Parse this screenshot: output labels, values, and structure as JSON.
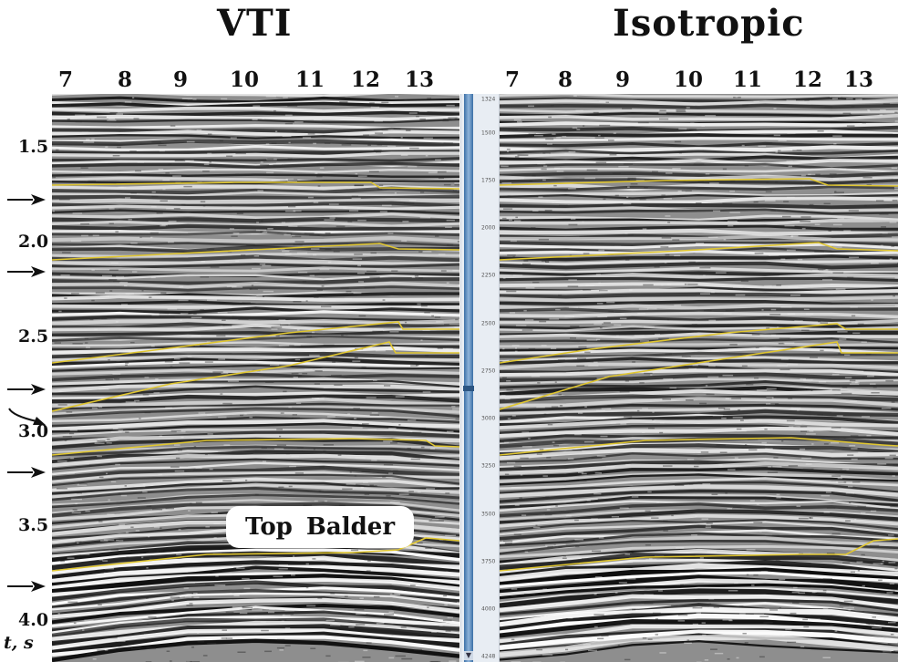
{
  "figure": {
    "left_title": "VTI",
    "right_title": "Isotropic",
    "y_axis_label": "t, s",
    "callout": "Top Balder"
  },
  "chart_data": [
    {
      "type": "heatmap",
      "title": "VTI",
      "x_ticks": [
        "7",
        "8",
        "9",
        "10",
        "11",
        "12",
        "13"
      ],
      "y_ticks": [
        "1.5",
        "2.0",
        "2.5",
        "3.0",
        "3.5",
        "4.0"
      ],
      "ylabel": "t, s",
      "ylim": [
        1.22,
        4.22
      ],
      "annotation": "Top Balder",
      "horizon_arrow_times": [
        1.78,
        2.16,
        2.78,
        2.93,
        3.22,
        3.82
      ]
    },
    {
      "type": "heatmap",
      "title": "Isotropic",
      "x_ticks": [
        "7",
        "8",
        "9",
        "10",
        "11",
        "12",
        "13"
      ],
      "scale_labels": [
        "1324",
        "1500",
        "1750",
        "2000",
        "2250",
        "2500",
        "2750",
        "3000",
        "3250",
        "3500",
        "3750",
        "4000",
        "4248"
      ]
    }
  ],
  "colors": {
    "horizon": "#e0c630",
    "background": "#ffffff",
    "scrollbar": "#3b6fa6"
  }
}
